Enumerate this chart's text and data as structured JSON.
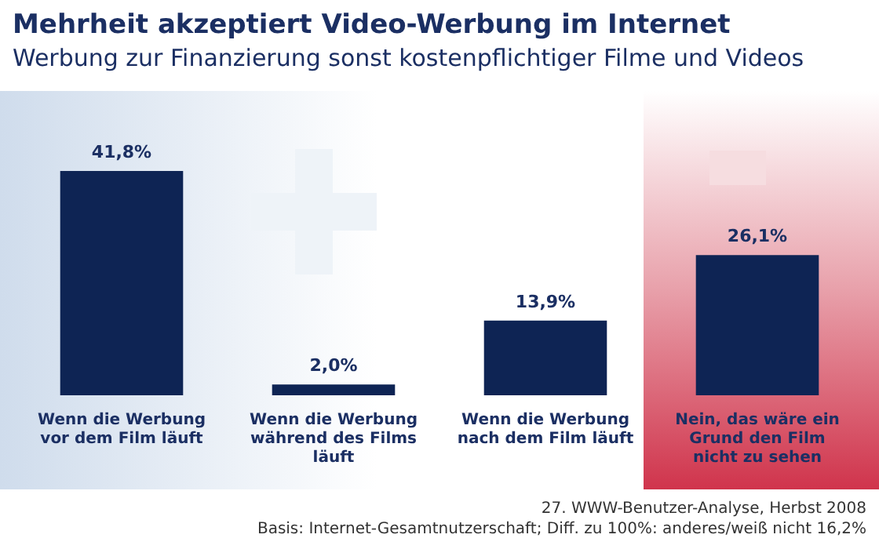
{
  "chart_data": {
    "type": "bar",
    "title": "Mehrheit akzeptiert Video-Werbung im Internet",
    "subtitle": "Werbung zur Finanzierung sonst kostenpflichtiger Filme und Videos",
    "categories": [
      "Wenn die Werbung vor dem Film läuft",
      "Wenn die Werbung während des Films läuft",
      "Wenn die Werbung nach dem Film läuft",
      "Nein, das wäre ein Grund den Film nicht zu sehen"
    ],
    "values": [
      41.8,
      2.0,
      13.9,
      26.1
    ],
    "color": "#0e2454",
    "value_labels": [
      "41,8%",
      "2,0%",
      "13,9%",
      "26,1%"
    ],
    "annotations": [
      "27. WWW-Benutzer-Analyse, Herbst 2008",
      "Basis: Internet-Gesamtnutzerschaft; Diff. zu 100%: anderes/weiß nicht 16,2%"
    ],
    "grid": false,
    "legend": false
  }
}
